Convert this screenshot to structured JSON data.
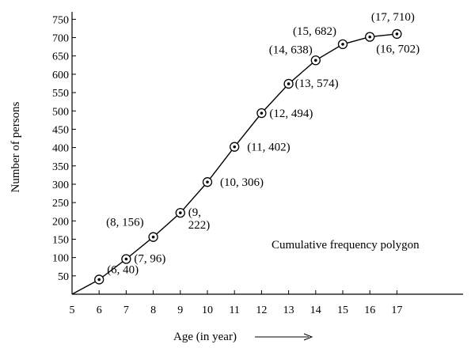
{
  "chart_data": {
    "type": "line",
    "title": "",
    "xlabel": "Age (in year)",
    "ylabel": "Number of persons",
    "annotation": "Cumulative frequency polygon",
    "x_ticks": [
      5,
      6,
      7,
      8,
      9,
      10,
      11,
      12,
      13,
      14,
      15,
      16,
      17
    ],
    "y_ticks": [
      50,
      100,
      150,
      200,
      250,
      300,
      350,
      400,
      450,
      500,
      550,
      600,
      650,
      700,
      750
    ],
    "xlim": [
      5,
      17
    ],
    "ylim": [
      0,
      750
    ],
    "grid": false,
    "series": [
      {
        "start": [
          5,
          0
        ],
        "points": [
          {
            "x": 6,
            "y": 40,
            "label": "(6, 40)"
          },
          {
            "x": 7,
            "y": 96,
            "label": "(7, 96)"
          },
          {
            "x": 8,
            "y": 156,
            "label": "(8, 156)"
          },
          {
            "x": 9,
            "y": 222,
            "label": "(9, 222)"
          },
          {
            "x": 10,
            "y": 306,
            "label": "(10, 306)"
          },
          {
            "x": 11,
            "y": 402,
            "label": "(11, 402)"
          },
          {
            "x": 12,
            "y": 494,
            "label": "(12, 494)"
          },
          {
            "x": 13,
            "y": 574,
            "label": "(13, 574)"
          },
          {
            "x": 14,
            "y": 638,
            "label": "(14, 638)"
          },
          {
            "x": 15,
            "y": 682,
            "label": "(15, 682)"
          },
          {
            "x": 16,
            "y": 702,
            "label": "(16, 702)"
          },
          {
            "x": 17,
            "y": 710,
            "label": "(17, 710)"
          }
        ]
      }
    ]
  }
}
